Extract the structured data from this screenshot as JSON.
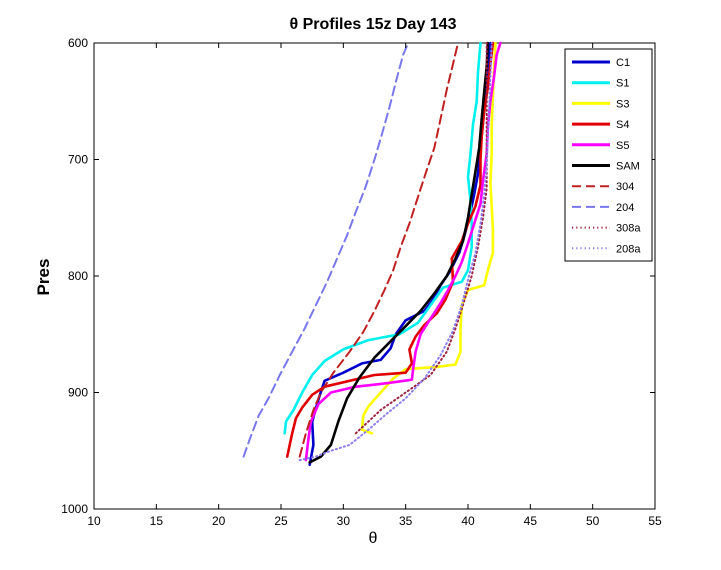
{
  "chart_data": {
    "type": "line",
    "title": "θ Profiles 15z Day 143",
    "xlabel": "θ",
    "ylabel": "Pres",
    "xlim": [
      10,
      55
    ],
    "ylim": [
      600,
      1000
    ],
    "y_reversed": true,
    "grid": false,
    "legend_position": "top-right",
    "x_ticks": [
      "10",
      "15",
      "20",
      "25",
      "30",
      "35",
      "40",
      "45",
      "50",
      "55"
    ],
    "y_ticks": [
      "600",
      "700",
      "800",
      "900",
      "1000"
    ],
    "series": [
      {
        "name": "C1",
        "color": "#0000cc",
        "style": "solid",
        "points": [
          [
            27.3,
            962
          ],
          [
            27.6,
            945
          ],
          [
            27.5,
            925
          ],
          [
            28.0,
            906
          ],
          [
            28.5,
            890
          ],
          [
            30.0,
            883
          ],
          [
            31.5,
            875
          ],
          [
            33.0,
            872
          ],
          [
            33.8,
            862
          ],
          [
            34.2,
            850
          ],
          [
            35.0,
            838
          ],
          [
            36.5,
            830
          ],
          [
            37.2,
            820
          ],
          [
            37.8,
            808
          ],
          [
            38.5,
            797
          ],
          [
            39.3,
            780
          ],
          [
            39.8,
            762
          ],
          [
            40.2,
            745
          ],
          [
            40.5,
            730
          ],
          [
            40.8,
            712
          ],
          [
            41.0,
            690
          ],
          [
            41.2,
            668
          ],
          [
            41.4,
            645
          ],
          [
            41.6,
            625
          ],
          [
            41.8,
            600
          ]
        ]
      },
      {
        "name": "S1",
        "color": "#00f0f0",
        "style": "solid",
        "points": [
          [
            25.3,
            935
          ],
          [
            25.4,
            925
          ],
          [
            26.0,
            915
          ],
          [
            26.7,
            900
          ],
          [
            27.5,
            885
          ],
          [
            28.5,
            873
          ],
          [
            30.0,
            863
          ],
          [
            32.0,
            855
          ],
          [
            34.5,
            850
          ],
          [
            36.0,
            840
          ],
          [
            37.0,
            825
          ],
          [
            38.0,
            810
          ],
          [
            39.5,
            805
          ],
          [
            40.0,
            795
          ],
          [
            40.3,
            775
          ],
          [
            40.3,
            755
          ],
          [
            40.2,
            735
          ],
          [
            40.0,
            715
          ],
          [
            40.2,
            695
          ],
          [
            40.4,
            670
          ],
          [
            40.7,
            650
          ],
          [
            40.8,
            625
          ],
          [
            41.0,
            600
          ]
        ]
      },
      {
        "name": "S3",
        "color": "#ffff00",
        "style": "solid",
        "points": [
          [
            32.3,
            935
          ],
          [
            31.5,
            932
          ],
          [
            31.6,
            920
          ],
          [
            32.0,
            912
          ],
          [
            33.0,
            900
          ],
          [
            34.0,
            888
          ],
          [
            35.0,
            880
          ],
          [
            37.5,
            878
          ],
          [
            39.0,
            876
          ],
          [
            39.4,
            865
          ],
          [
            39.4,
            845
          ],
          [
            39.5,
            825
          ],
          [
            40.0,
            812
          ],
          [
            41.3,
            808
          ],
          [
            41.6,
            795
          ],
          [
            42.0,
            780
          ],
          [
            42.0,
            760
          ],
          [
            41.9,
            740
          ],
          [
            41.8,
            720
          ],
          [
            41.9,
            695
          ],
          [
            41.9,
            670
          ],
          [
            42.0,
            645
          ],
          [
            42.1,
            620
          ],
          [
            42.2,
            600
          ]
        ]
      },
      {
        "name": "S4",
        "color": "#e00000",
        "style": "solid",
        "points": [
          [
            25.5,
            955
          ],
          [
            25.9,
            935
          ],
          [
            26.2,
            922
          ],
          [
            26.7,
            913
          ],
          [
            27.5,
            902
          ],
          [
            28.5,
            895
          ],
          [
            30.5,
            890
          ],
          [
            32.5,
            885
          ],
          [
            35.0,
            883
          ],
          [
            35.5,
            875
          ],
          [
            35.3,
            863
          ],
          [
            35.8,
            852
          ],
          [
            36.5,
            842
          ],
          [
            37.5,
            832
          ],
          [
            38.2,
            820
          ],
          [
            38.8,
            805
          ],
          [
            38.7,
            785
          ],
          [
            39.5,
            770
          ],
          [
            40.0,
            755
          ],
          [
            40.6,
            740
          ],
          [
            41.0,
            722
          ],
          [
            41.0,
            700
          ],
          [
            41.1,
            680
          ],
          [
            41.3,
            658
          ],
          [
            41.6,
            638
          ],
          [
            41.8,
            618
          ],
          [
            42.0,
            600
          ]
        ]
      },
      {
        "name": "S5",
        "color": "#ff00ff",
        "style": "solid",
        "points": [
          [
            27.0,
            958
          ],
          [
            27.2,
            940
          ],
          [
            27.4,
            925
          ],
          [
            28.0,
            910
          ],
          [
            29.0,
            900
          ],
          [
            31.0,
            895
          ],
          [
            33.5,
            892
          ],
          [
            35.5,
            889
          ],
          [
            35.6,
            880
          ],
          [
            35.8,
            865
          ],
          [
            36.2,
            850
          ],
          [
            36.9,
            838
          ],
          [
            37.7,
            825
          ],
          [
            38.4,
            812
          ],
          [
            39.0,
            800
          ],
          [
            39.5,
            788
          ],
          [
            40.0,
            772
          ],
          [
            40.5,
            755
          ],
          [
            41.0,
            738
          ],
          [
            41.2,
            718
          ],
          [
            41.5,
            695
          ],
          [
            41.6,
            672
          ],
          [
            41.8,
            650
          ],
          [
            42.1,
            628
          ],
          [
            42.3,
            610
          ],
          [
            42.6,
            600
          ]
        ]
      },
      {
        "name": "SAM",
        "color": "#000000",
        "style": "solid",
        "points": [
          [
            27.3,
            960
          ],
          [
            28.2,
            955
          ],
          [
            29.0,
            945
          ],
          [
            29.6,
            925
          ],
          [
            30.3,
            905
          ],
          [
            31.3,
            887
          ],
          [
            32.5,
            870
          ],
          [
            33.8,
            856
          ],
          [
            35.0,
            843
          ],
          [
            36.2,
            830
          ],
          [
            37.3,
            815
          ],
          [
            38.3,
            800
          ],
          [
            39.0,
            785
          ],
          [
            39.6,
            770
          ],
          [
            40.0,
            750
          ],
          [
            40.3,
            730
          ],
          [
            40.6,
            710
          ],
          [
            40.9,
            690
          ],
          [
            41.1,
            665
          ],
          [
            41.3,
            642
          ],
          [
            41.5,
            620
          ],
          [
            41.6,
            600
          ]
        ]
      },
      {
        "name": "304",
        "color": "#c02020",
        "style": "dashed",
        "points": [
          [
            26.5,
            955
          ],
          [
            27.0,
            935
          ],
          [
            27.6,
            915
          ],
          [
            28.2,
            900
          ],
          [
            29.2,
            883
          ],
          [
            30.5,
            865
          ],
          [
            31.6,
            848
          ],
          [
            32.5,
            830
          ],
          [
            33.3,
            812
          ],
          [
            34.0,
            795
          ],
          [
            34.6,
            775
          ],
          [
            35.3,
            755
          ],
          [
            35.9,
            735
          ],
          [
            36.6,
            712
          ],
          [
            37.3,
            690
          ],
          [
            37.8,
            665
          ],
          [
            38.3,
            640
          ],
          [
            38.8,
            618
          ],
          [
            39.2,
            600
          ]
        ]
      },
      {
        "name": "204",
        "color": "#7878ee",
        "style": "dashed",
        "points": [
          [
            22.0,
            955
          ],
          [
            22.5,
            940
          ],
          [
            23.2,
            920
          ],
          [
            24.0,
            905
          ],
          [
            24.9,
            885
          ],
          [
            25.9,
            865
          ],
          [
            26.9,
            845
          ],
          [
            27.8,
            825
          ],
          [
            28.7,
            805
          ],
          [
            29.5,
            785
          ],
          [
            30.3,
            765
          ],
          [
            31.0,
            745
          ],
          [
            31.8,
            723
          ],
          [
            32.5,
            700
          ],
          [
            33.1,
            678
          ],
          [
            33.7,
            655
          ],
          [
            34.3,
            630
          ],
          [
            34.8,
            610
          ],
          [
            35.2,
            600
          ]
        ]
      },
      {
        "name": "308a",
        "color": "#a02040",
        "style": "dotted",
        "points": [
          [
            31.0,
            935
          ],
          [
            33.0,
            915
          ],
          [
            35.0,
            900
          ],
          [
            37.0,
            885
          ],
          [
            38.3,
            865
          ],
          [
            39.0,
            845
          ],
          [
            39.6,
            825
          ],
          [
            40.3,
            800
          ],
          [
            40.8,
            775
          ],
          [
            41.2,
            750
          ],
          [
            41.5,
            725
          ],
          [
            41.5,
            700
          ],
          [
            41.5,
            675
          ],
          [
            41.5,
            650
          ],
          [
            41.5,
            625
          ],
          [
            41.5,
            600
          ]
        ]
      },
      {
        "name": "208a",
        "color": "#8c7cf0",
        "style": "dotted",
        "points": [
          [
            26.5,
            958
          ],
          [
            27.8,
            955
          ],
          [
            29.0,
            950
          ],
          [
            30.5,
            945
          ],
          [
            32.0,
            932
          ],
          [
            33.5,
            918
          ],
          [
            35.0,
            905
          ],
          [
            36.5,
            888
          ],
          [
            37.8,
            868
          ],
          [
            38.8,
            847
          ],
          [
            39.5,
            825
          ],
          [
            40.0,
            803
          ],
          [
            40.6,
            780
          ],
          [
            41.0,
            755
          ],
          [
            41.3,
            730
          ],
          [
            41.5,
            705
          ],
          [
            41.6,
            680
          ],
          [
            41.7,
            655
          ],
          [
            41.8,
            630
          ],
          [
            41.9,
            600
          ]
        ]
      }
    ]
  }
}
